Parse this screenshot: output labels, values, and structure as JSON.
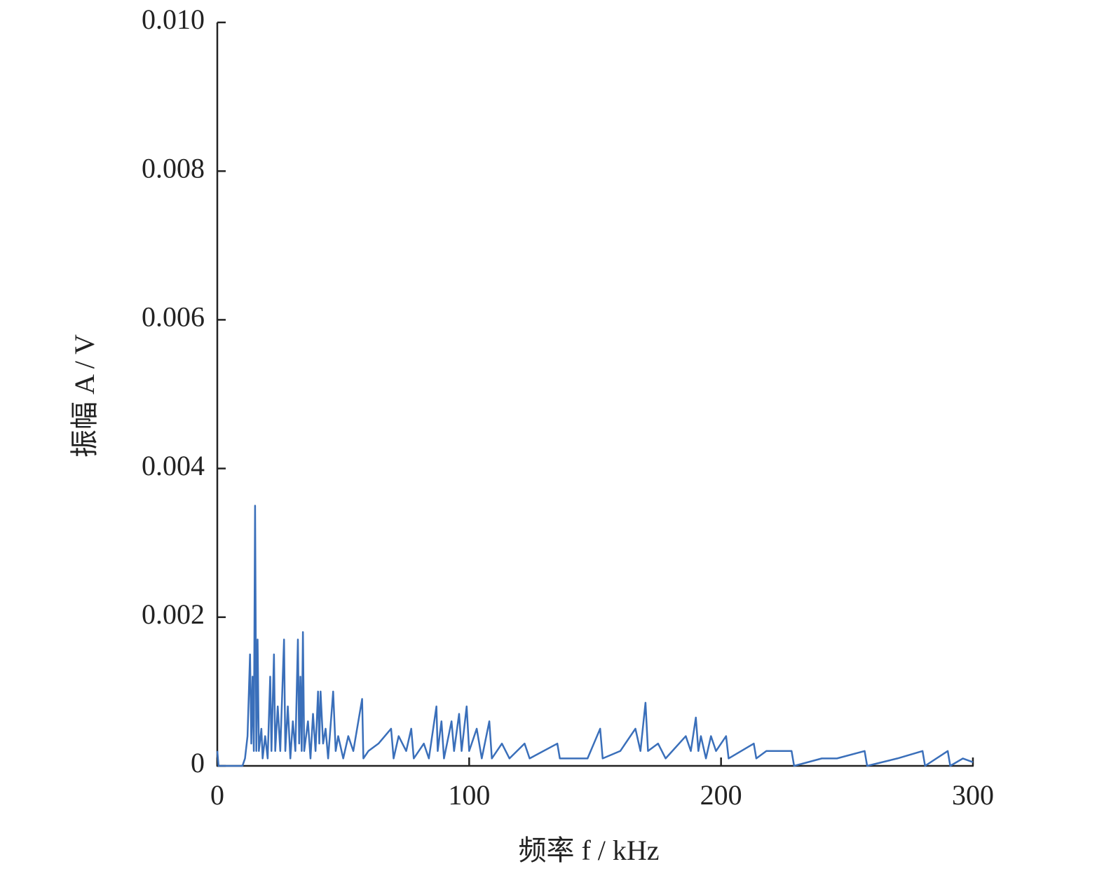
{
  "chart_data": {
    "type": "line",
    "xlabel": "频率 f / kHz",
    "ylabel": "振幅 A / V",
    "x": [
      0,
      0.5,
      10,
      11,
      12,
      13,
      13.5,
      14,
      14.5,
      15,
      15.5,
      16,
      16.5,
      17.5,
      18,
      19,
      20,
      21,
      21.5,
      22.5,
      23,
      24,
      25,
      26.5,
      27,
      28,
      29,
      30,
      31,
      32,
      32.5,
      33,
      33.5,
      34,
      34.5,
      36,
      37,
      38,
      39,
      40,
      40.5,
      41,
      42,
      43,
      44,
      46,
      47,
      48,
      50,
      52,
      54,
      57.5,
      58,
      60,
      64,
      69,
      70,
      72,
      75,
      77,
      78,
      82,
      84,
      87,
      87.5,
      89,
      90,
      93,
      94,
      96,
      97,
      99,
      100,
      103,
      105,
      108,
      109,
      113,
      116,
      122,
      124,
      135,
      136,
      147,
      152,
      153,
      160,
      166,
      168,
      170,
      171,
      175,
      178,
      186,
      188,
      190,
      191,
      192,
      194,
      196,
      198,
      202,
      203,
      208,
      213,
      214,
      218,
      228,
      229,
      240,
      246,
      257,
      258,
      270,
      280,
      281,
      290,
      291,
      296,
      300
    ],
    "series": [
      {
        "name": "振幅",
        "color": "#3a6fba",
        "values": [
          0.0002,
          0,
          0,
          0.0001,
          0.0004,
          0.0015,
          0.0003,
          0.0012,
          0.0002,
          0.0035,
          0.0002,
          0.0017,
          0.0002,
          0.0005,
          0.0001,
          0.0004,
          0.0001,
          0.0012,
          0.0002,
          0.0015,
          0.0002,
          0.0008,
          0.0002,
          0.0017,
          0.0002,
          0.0008,
          0.0001,
          0.0006,
          0.0002,
          0.0017,
          0.0003,
          0.0012,
          0.0002,
          0.0018,
          0.0002,
          0.0006,
          0.0001,
          0.0007,
          0.0002,
          0.001,
          0.0003,
          0.001,
          0.0003,
          0.0005,
          0.0001,
          0.001,
          0.0002,
          0.0004,
          0.0001,
          0.0004,
          0.0002,
          0.0009,
          0.0001,
          0.0002,
          0.0003,
          0.0005,
          0.0001,
          0.0004,
          0.0002,
          0.0005,
          0.0001,
          0.0003,
          0.0001,
          0.0008,
          0.0002,
          0.0006,
          0.0001,
          0.0006,
          0.0002,
          0.0007,
          0.0002,
          0.0008,
          0.0002,
          0.0005,
          0.0001,
          0.0006,
          0.0001,
          0.0003,
          0.0001,
          0.0003,
          0.0001,
          0.0003,
          0.0001,
          0.0001,
          0.0005,
          0.0001,
          0.0002,
          0.0005,
          0.0002,
          0.00085,
          0.0002,
          0.0003,
          0.0001,
          0.0004,
          0.0002,
          0.00065,
          0.0002,
          0.0004,
          0.0001,
          0.0004,
          0.0002,
          0.0004,
          0.0001,
          0.0002,
          0.0003,
          0.0001,
          0.0002,
          0.0002,
          0,
          0.0001,
          0.0001,
          0.0002,
          0,
          0.0001,
          0.0002,
          0,
          0.0002,
          0,
          0.0001,
          5e-05
        ]
      }
    ],
    "xlim": [
      0,
      300
    ],
    "xticks": [
      0,
      100,
      200,
      300
    ],
    "ylim": [
      0,
      0.01
    ],
    "yticks": [
      0,
      0.002,
      0.004,
      0.006,
      0.008,
      {
        "value": 0.01,
        "label": "0.010"
      }
    ]
  }
}
